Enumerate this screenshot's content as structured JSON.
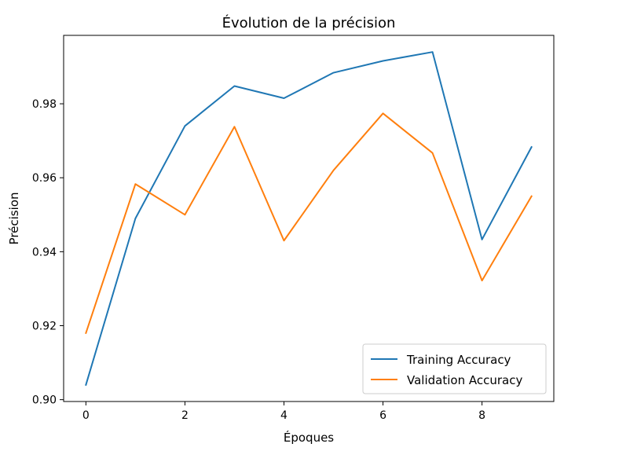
{
  "chart_data": {
    "type": "line",
    "title": "Évolution de la précision",
    "xlabel": "Époques",
    "ylabel": "Précision",
    "x": [
      0,
      1,
      2,
      3,
      4,
      5,
      6,
      7,
      8,
      9
    ],
    "xticks": [
      0,
      2,
      4,
      6,
      8
    ],
    "xtick_labels": [
      "0",
      "2",
      "4",
      "6",
      "8"
    ],
    "yticks": [
      0.9,
      0.92,
      0.94,
      0.96,
      0.98
    ],
    "ytick_labels": [
      "0.90",
      "0.92",
      "0.94",
      "0.96",
      "0.98"
    ],
    "xlim": [
      -0.45,
      9.45
    ],
    "ylim": [
      0.8995,
      0.9985
    ],
    "grid": false,
    "legend_position": "lower-right",
    "series": [
      {
        "name": "Training Accuracy",
        "color": "#1f77b4",
        "values": [
          0.904,
          0.949,
          0.974,
          0.9848,
          0.9815,
          0.9884,
          0.9916,
          0.994,
          0.9433,
          0.9683
        ]
      },
      {
        "name": "Validation Accuracy",
        "color": "#ff7f0e",
        "values": [
          0.918,
          0.9583,
          0.95,
          0.9738,
          0.943,
          0.962,
          0.9774,
          0.9667,
          0.9322,
          0.955
        ]
      }
    ]
  }
}
